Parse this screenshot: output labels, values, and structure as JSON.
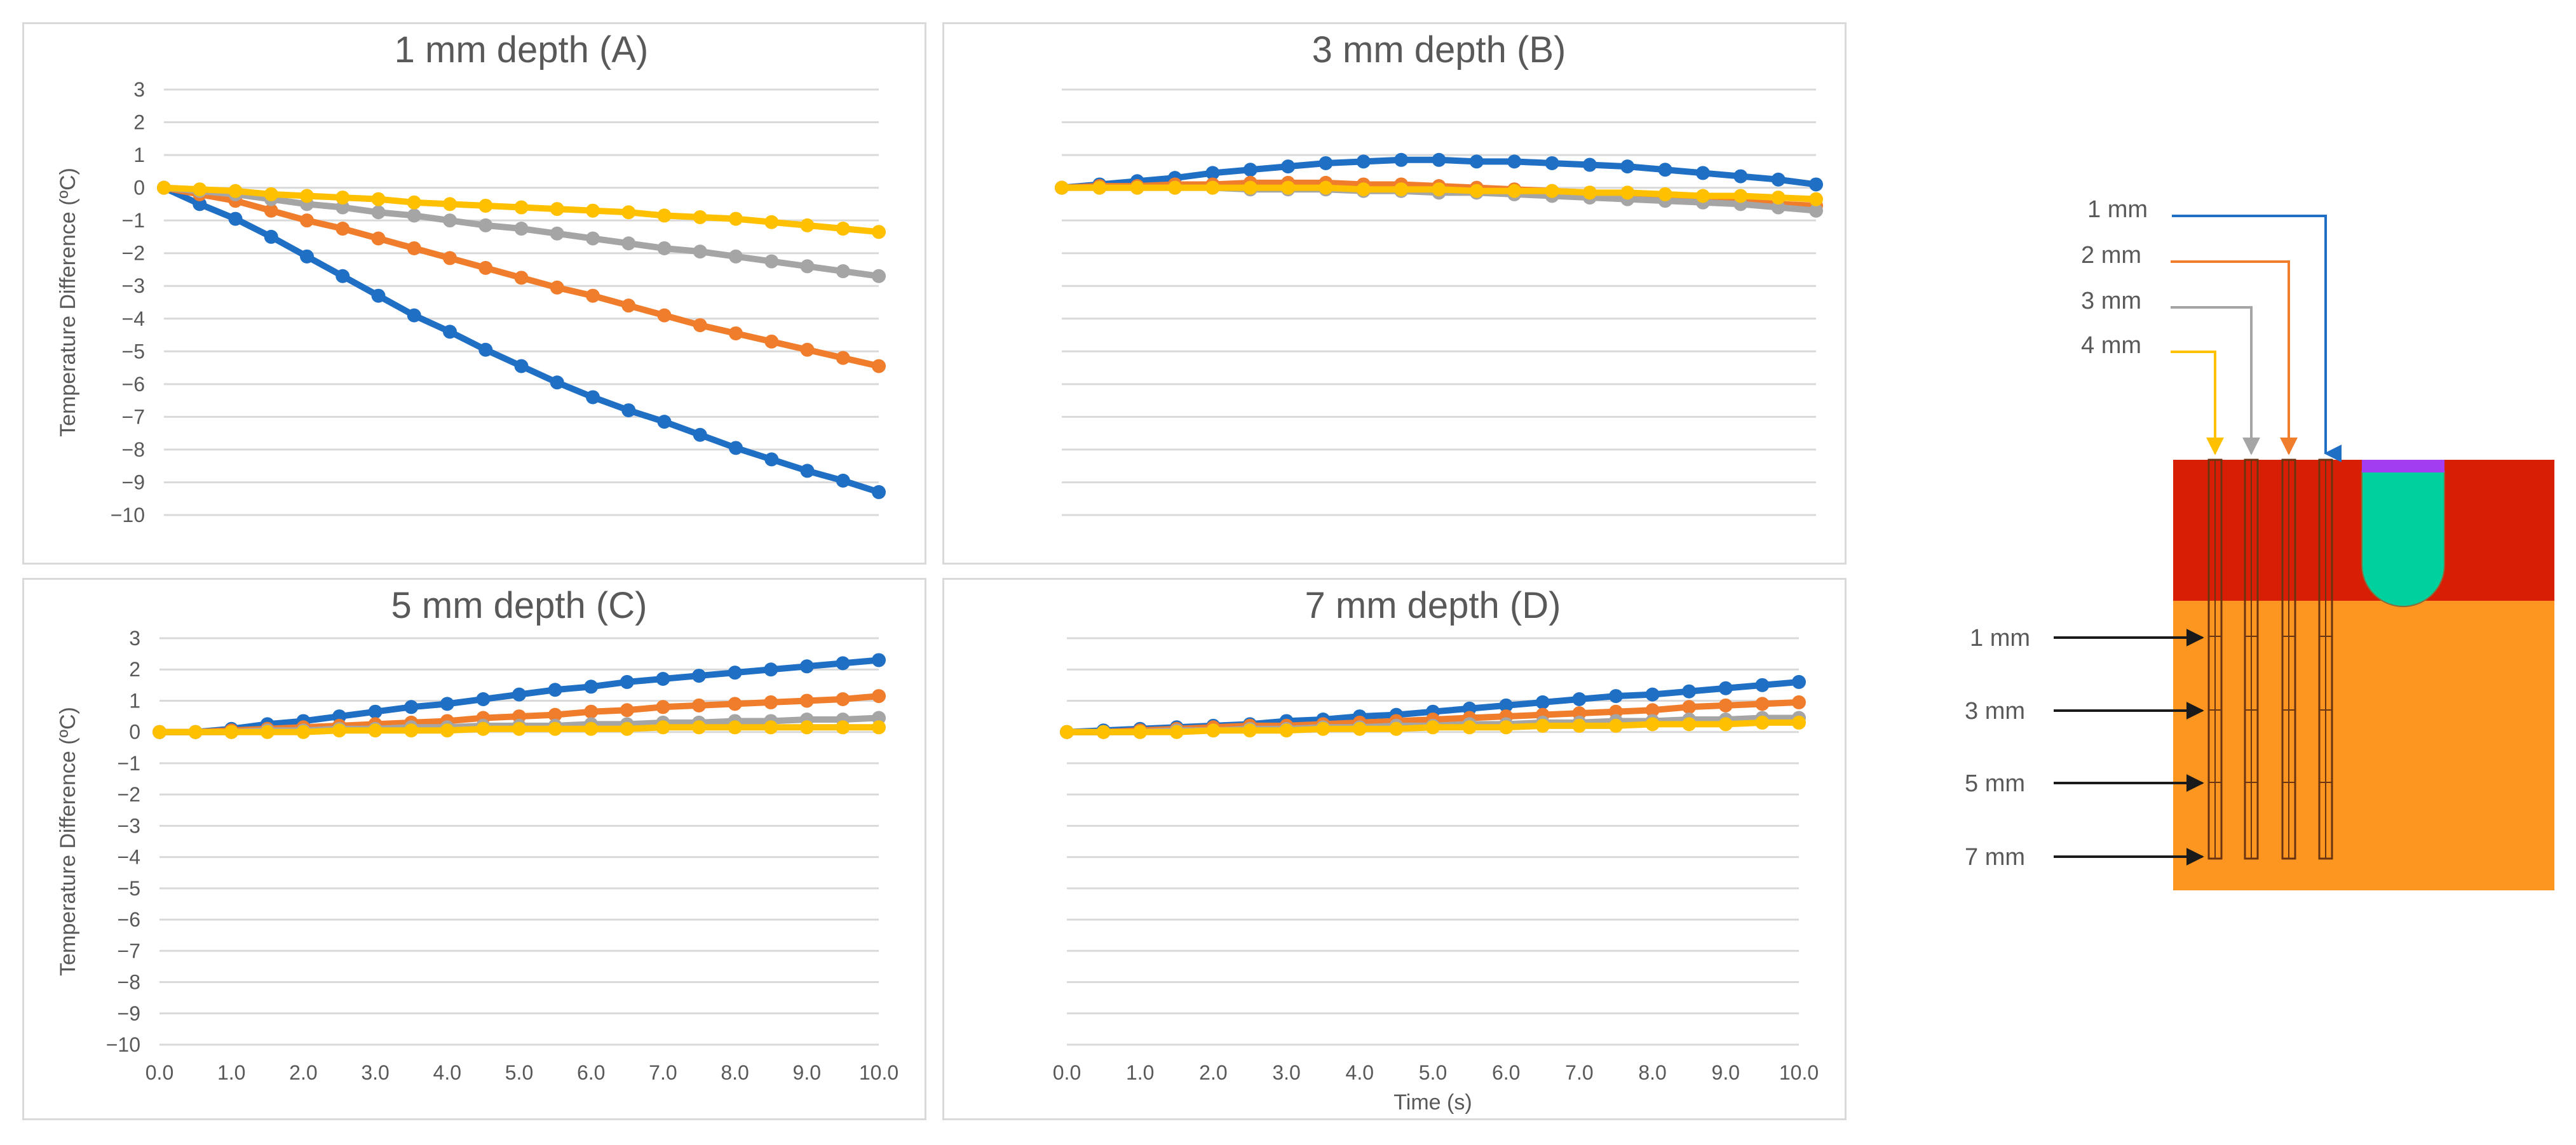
{
  "chart_data": [
    {
      "id": "A",
      "type": "line",
      "title": "1 mm depth (A)",
      "ylabel": "Temperature Difference (ºC)",
      "xlabel": "",
      "ylim": [
        -10,
        3
      ],
      "yticks": [
        "3",
        "2",
        "1",
        "0",
        "−1",
        "−2",
        "−3",
        "−4",
        "−5",
        "−6",
        "−7",
        "−8",
        "−9",
        "−10"
      ],
      "xticks": [],
      "x": [
        0,
        0.5,
        1,
        1.5,
        2,
        2.5,
        3,
        3.5,
        4,
        4.5,
        5,
        5.5,
        6,
        6.5,
        7,
        7.5,
        8,
        8.5,
        9,
        9.5,
        10
      ],
      "series": [
        {
          "name": "1 mm",
          "color": "#1f6fc5",
          "values": [
            0,
            -0.5,
            -0.95,
            -1.5,
            -2.1,
            -2.7,
            -3.3,
            -3.9,
            -4.4,
            -4.95,
            -5.45,
            -5.95,
            -6.4,
            -6.8,
            -7.15,
            -7.55,
            -7.95,
            -8.3,
            -8.65,
            -8.95,
            -9.3
          ]
        },
        {
          "name": "2 mm",
          "color": "#f07d2c",
          "values": [
            0,
            -0.2,
            -0.4,
            -0.7,
            -1.0,
            -1.25,
            -1.55,
            -1.85,
            -2.15,
            -2.45,
            -2.75,
            -3.05,
            -3.3,
            -3.6,
            -3.9,
            -4.2,
            -4.45,
            -4.7,
            -4.95,
            -5.2,
            -5.45
          ]
        },
        {
          "name": "3 mm",
          "color": "#a5a5a5",
          "values": [
            0,
            -0.1,
            -0.2,
            -0.35,
            -0.5,
            -0.6,
            -0.75,
            -0.85,
            -1.0,
            -1.15,
            -1.25,
            -1.4,
            -1.55,
            -1.7,
            -1.85,
            -1.95,
            -2.1,
            -2.25,
            -2.4,
            -2.55,
            -2.7
          ]
        },
        {
          "name": "4 mm",
          "color": "#ffc000",
          "values": [
            0,
            -0.05,
            -0.1,
            -0.2,
            -0.25,
            -0.3,
            -0.35,
            -0.45,
            -0.5,
            -0.55,
            -0.6,
            -0.65,
            -0.7,
            -0.75,
            -0.85,
            -0.9,
            -0.95,
            -1.05,
            -1.15,
            -1.25,
            -1.35
          ]
        }
      ]
    },
    {
      "id": "B",
      "type": "line",
      "title": "3 mm depth (B)",
      "ylabel": "",
      "xlabel": "",
      "ylim": [
        -10,
        3
      ],
      "yticks": [],
      "xticks": [],
      "x": [
        0,
        0.5,
        1,
        1.5,
        2,
        2.5,
        3,
        3.5,
        4,
        4.5,
        5,
        5.5,
        6,
        6.5,
        7,
        7.5,
        8,
        8.5,
        9,
        9.5,
        10
      ],
      "series": [
        {
          "name": "1 mm",
          "color": "#1f6fc5",
          "values": [
            0,
            0.1,
            0.2,
            0.3,
            0.45,
            0.55,
            0.65,
            0.75,
            0.8,
            0.85,
            0.85,
            0.8,
            0.8,
            0.75,
            0.7,
            0.65,
            0.55,
            0.45,
            0.35,
            0.25,
            0.1
          ]
        },
        {
          "name": "2 mm",
          "color": "#f07d2c",
          "values": [
            0,
            0.05,
            0.05,
            0.1,
            0.1,
            0.15,
            0.15,
            0.15,
            0.1,
            0.1,
            0.05,
            0.0,
            -0.05,
            -0.1,
            -0.15,
            -0.2,
            -0.25,
            -0.35,
            -0.4,
            -0.5,
            -0.55
          ]
        },
        {
          "name": "3 mm",
          "color": "#a5a5a5",
          "values": [
            0,
            0.0,
            0.0,
            0.0,
            0.0,
            -0.05,
            -0.05,
            -0.05,
            -0.1,
            -0.1,
            -0.15,
            -0.15,
            -0.2,
            -0.25,
            -0.3,
            -0.35,
            -0.4,
            -0.45,
            -0.5,
            -0.6,
            -0.7
          ]
        },
        {
          "name": "4 mm",
          "color": "#ffc000",
          "values": [
            0,
            0.0,
            0.0,
            0.0,
            0.0,
            0.0,
            0.0,
            0.0,
            -0.05,
            -0.05,
            -0.05,
            -0.1,
            -0.1,
            -0.1,
            -0.15,
            -0.15,
            -0.2,
            -0.25,
            -0.25,
            -0.3,
            -0.35
          ]
        }
      ]
    },
    {
      "id": "C",
      "type": "line",
      "title": "5 mm depth (C)",
      "ylabel": "Temperature Difference (ºC)",
      "xlabel": "",
      "ylim": [
        -10,
        3
      ],
      "yticks": [
        "3",
        "2",
        "1",
        "0",
        "−1",
        "−2",
        "−3",
        "−4",
        "−5",
        "−6",
        "−7",
        "−8",
        "−9",
        "−10"
      ],
      "xticks": [
        "0.0",
        "1.0",
        "2.0",
        "3.0",
        "4.0",
        "5.0",
        "6.0",
        "7.0",
        "8.0",
        "9.0",
        "10.0"
      ],
      "x": [
        0,
        0.5,
        1,
        1.5,
        2,
        2.5,
        3,
        3.5,
        4,
        4.5,
        5,
        5.5,
        6,
        6.5,
        7,
        7.5,
        8,
        8.5,
        9,
        9.5,
        10
      ],
      "series": [
        {
          "name": "1 mm",
          "color": "#1f6fc5",
          "values": [
            0,
            0.0,
            0.1,
            0.25,
            0.35,
            0.5,
            0.65,
            0.8,
            0.9,
            1.05,
            1.2,
            1.35,
            1.45,
            1.6,
            1.7,
            1.8,
            1.9,
            2.0,
            2.1,
            2.2,
            2.3
          ]
        },
        {
          "name": "2 mm",
          "color": "#f07d2c",
          "values": [
            0,
            0.0,
            0.05,
            0.1,
            0.15,
            0.2,
            0.25,
            0.3,
            0.35,
            0.45,
            0.5,
            0.55,
            0.65,
            0.7,
            0.8,
            0.85,
            0.9,
            0.95,
            1.0,
            1.05,
            1.15
          ]
        },
        {
          "name": "3 mm",
          "color": "#a5a5a5",
          "values": [
            0,
            0.0,
            0.0,
            0.05,
            0.05,
            0.1,
            0.1,
            0.15,
            0.15,
            0.2,
            0.2,
            0.2,
            0.25,
            0.25,
            0.3,
            0.3,
            0.35,
            0.35,
            0.4,
            0.4,
            0.45
          ]
        },
        {
          "name": "4 mm",
          "color": "#ffc000",
          "values": [
            0,
            0.0,
            0.0,
            0.0,
            0.0,
            0.05,
            0.05,
            0.05,
            0.05,
            0.1,
            0.1,
            0.1,
            0.1,
            0.1,
            0.15,
            0.15,
            0.15,
            0.15,
            0.15,
            0.15,
            0.15
          ]
        }
      ]
    },
    {
      "id": "D",
      "type": "line",
      "title": "7 mm depth (D)",
      "ylabel": "",
      "xlabel": "Time (s)",
      "ylim": [
        -10,
        3
      ],
      "yticks": [],
      "xticks": [
        "0.0",
        "1.0",
        "2.0",
        "3.0",
        "4.0",
        "5.0",
        "6.0",
        "7.0",
        "8.0",
        "9.0",
        "10.0"
      ],
      "x": [
        0,
        0.5,
        1,
        1.5,
        2,
        2.5,
        3,
        3.5,
        4,
        4.5,
        5,
        5.5,
        6,
        6.5,
        7,
        7.5,
        8,
        8.5,
        9,
        9.5,
        10
      ],
      "series": [
        {
          "name": "1 mm",
          "color": "#1f6fc5",
          "values": [
            0,
            0.05,
            0.1,
            0.15,
            0.2,
            0.25,
            0.35,
            0.4,
            0.5,
            0.55,
            0.65,
            0.75,
            0.85,
            0.95,
            1.05,
            1.15,
            1.2,
            1.3,
            1.4,
            1.5,
            1.6
          ]
        },
        {
          "name": "2 mm",
          "color": "#f07d2c",
          "values": [
            0,
            0.0,
            0.05,
            0.1,
            0.15,
            0.2,
            0.2,
            0.25,
            0.3,
            0.35,
            0.4,
            0.45,
            0.5,
            0.55,
            0.6,
            0.65,
            0.7,
            0.8,
            0.85,
            0.9,
            0.95
          ]
        },
        {
          "name": "3 mm",
          "color": "#a5a5a5",
          "values": [
            0,
            0.0,
            0.0,
            0.05,
            0.05,
            0.1,
            0.1,
            0.15,
            0.15,
            0.2,
            0.2,
            0.25,
            0.25,
            0.3,
            0.3,
            0.35,
            0.35,
            0.4,
            0.4,
            0.45,
            0.45
          ]
        },
        {
          "name": "4 mm",
          "color": "#ffc000",
          "values": [
            0,
            0.0,
            0.0,
            0.0,
            0.05,
            0.05,
            0.05,
            0.1,
            0.1,
            0.1,
            0.15,
            0.15,
            0.15,
            0.2,
            0.2,
            0.2,
            0.25,
            0.25,
            0.25,
            0.3,
            0.3
          ]
        }
      ]
    }
  ],
  "diagram": {
    "probe_labels": [
      {
        "text": "1 mm",
        "color": "#1f6fc5"
      },
      {
        "text": "2 mm",
        "color": "#f07d2c"
      },
      {
        "text": "3 mm",
        "color": "#a5a5a5"
      },
      {
        "text": "4 mm",
        "color": "#ffc000"
      }
    ],
    "depth_labels": [
      "1 mm",
      "3 mm",
      "5 mm",
      "7 mm"
    ],
    "colors": {
      "upper_layer": "#d81e05",
      "lower_layer": "#fd9620",
      "inclusion": "#00d09e",
      "cap": "#a23df2",
      "arrow": "#1a1a1a"
    }
  }
}
